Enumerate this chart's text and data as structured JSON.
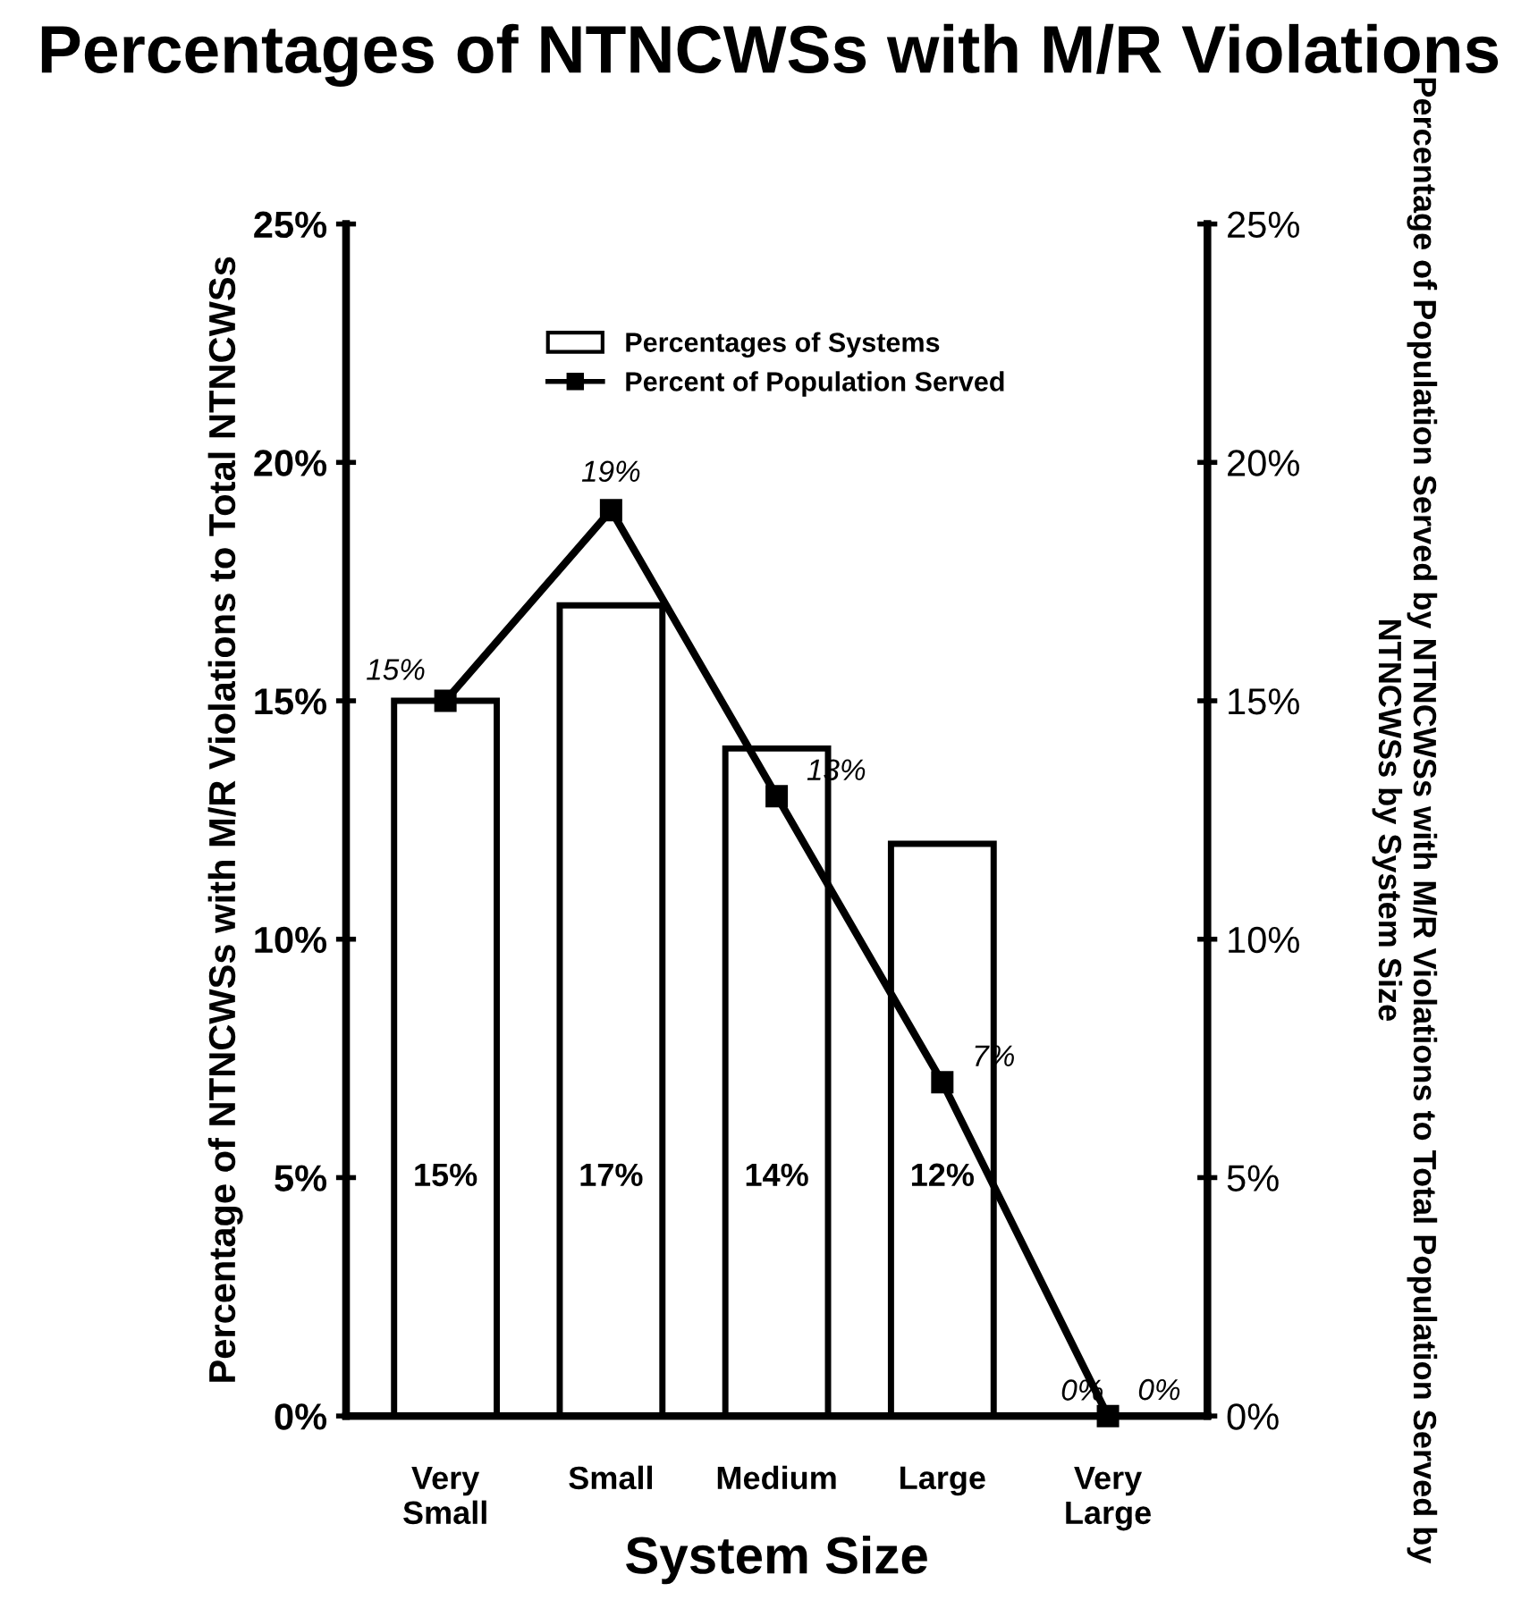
{
  "chart_data": {
    "type": "bar",
    "title": "Percentages of NTNCWSs with M/R Violations",
    "xlabel": "System Size",
    "ylabel": "Percentage of NTNCWSs with M/R Violations to Total NTNCWSs",
    "y2label": "Percentage of Population Served by NTNCWSs with M/R Violations to Total Population Served by NTNCWSs by System Size",
    "categories": [
      "Very\nSmall",
      "Small",
      "Medium",
      "Large",
      "Very\nLarge"
    ],
    "series": [
      {
        "name": "Percentages of Systems",
        "color": "#ffffff",
        "values": [
          15,
          17,
          14,
          12,
          0
        ],
        "value_labels": [
          "15%",
          "17%",
          "14%",
          "12%",
          "0%"
        ]
      },
      {
        "name": "Percent of Population Served",
        "type": "line",
        "axis": "y2",
        "color": "#000000",
        "values": [
          15,
          19,
          13,
          7,
          0
        ],
        "value_labels": [
          "15%",
          "19%",
          "13%",
          "7%",
          "0%"
        ]
      }
    ],
    "ylim": [
      0,
      25
    ],
    "yticks": [
      {
        "value": 0,
        "label": "0%"
      },
      {
        "value": 5,
        "label": "5%"
      },
      {
        "value": 10,
        "label": "10%"
      },
      {
        "value": 15,
        "label": "15%"
      },
      {
        "value": 20,
        "label": "20%"
      },
      {
        "value": 25,
        "label": "25%"
      }
    ],
    "y2lim": [
      0,
      25
    ],
    "y2ticks": [
      {
        "value": 0,
        "label": "0%"
      },
      {
        "value": 5,
        "label": "5%"
      },
      {
        "value": 10,
        "label": "10%"
      },
      {
        "value": 15,
        "label": "15%"
      },
      {
        "value": 20,
        "label": "20%"
      },
      {
        "value": 25,
        "label": "25%"
      }
    ],
    "marker": "square",
    "line_style": "solid",
    "legend": "top",
    "grid": false
  }
}
